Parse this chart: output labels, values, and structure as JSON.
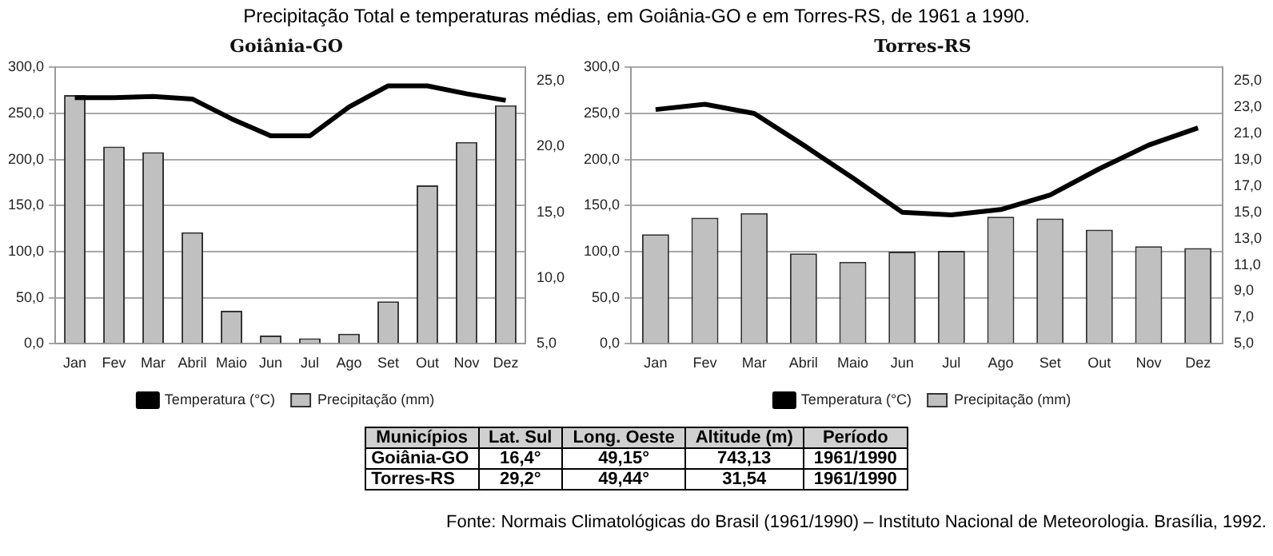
{
  "chart_data": [
    {
      "type": "bar",
      "title": "Goiânia-GO",
      "categories": [
        "Jan",
        "Fev",
        "Mar",
        "Abril",
        "Maio",
        "Jun",
        "Jul",
        "Ago",
        "Set",
        "Out",
        "Nov",
        "Dez"
      ],
      "series": [
        {
          "name": "Precipitação (mm)",
          "type": "bar",
          "color": "#c0c0c0",
          "values": [
            270,
            214,
            208,
            121,
            36,
            9,
            6,
            11,
            46,
            172,
            219,
            259
          ]
        },
        {
          "name": "Temperatura (°C)",
          "type": "line",
          "axis": "y2",
          "color": "#000000",
          "values": [
            23.7,
            23.7,
            23.8,
            23.6,
            22.1,
            20.8,
            20.8,
            23.0,
            24.6,
            24.6,
            24.0,
            23.5
          ]
        }
      ],
      "ylim": [
        0,
        300
      ],
      "yticks": [
        {
          "value": 0,
          "label": "0,0"
        },
        {
          "value": 50,
          "label": "50,0"
        },
        {
          "value": 100,
          "label": "100,0"
        },
        {
          "value": 150,
          "label": "150,0"
        },
        {
          "value": 200,
          "label": "200,0"
        },
        {
          "value": 250,
          "label": "250,0"
        },
        {
          "value": 300,
          "label": "300,0"
        }
      ],
      "y2lim": [
        5,
        26
      ],
      "y2ticks": [
        {
          "value": 5,
          "label": "5,0"
        },
        {
          "value": 10,
          "label": "10,0"
        },
        {
          "value": 15,
          "label": "15,0"
        },
        {
          "value": 20,
          "label": "20,0"
        },
        {
          "value": 25,
          "label": "25,0"
        }
      ],
      "grid": "y",
      "legend": "bottom",
      "marker": "none",
      "line_style": "solid"
    },
    {
      "type": "bar",
      "title": "Torres-RS",
      "categories": [
        "Jan",
        "Fev",
        "Mar",
        "Abril",
        "Maio",
        "Jun",
        "Jul",
        "Ago",
        "Set",
        "Out",
        "Nov",
        "Dez"
      ],
      "series": [
        {
          "name": "Precipitação (mm)",
          "type": "bar",
          "color": "#c0c0c0",
          "values": [
            119,
            137,
            142,
            98,
            89,
            100,
            101,
            138,
            136,
            124,
            106,
            104
          ]
        },
        {
          "name": "Temperatura (°C)",
          "type": "line",
          "axis": "y2",
          "color": "#000000",
          "values": [
            22.8,
            23.2,
            22.5,
            20.1,
            17.6,
            15.0,
            14.8,
            15.2,
            16.3,
            18.3,
            20.1,
            21.4
          ]
        }
      ],
      "ylim": [
        0,
        300
      ],
      "yticks": [
        {
          "value": 0,
          "label": "0,0"
        },
        {
          "value": 50,
          "label": "50,0"
        },
        {
          "value": 100,
          "label": "100,0"
        },
        {
          "value": 150,
          "label": "150,0"
        },
        {
          "value": 200,
          "label": "200,0"
        },
        {
          "value": 250,
          "label": "250,0"
        },
        {
          "value": 300,
          "label": "300,0"
        }
      ],
      "y2lim": [
        5,
        26
      ],
      "y2ticks": [
        {
          "value": 5,
          "label": "5,0"
        },
        {
          "value": 7,
          "label": "7,0"
        },
        {
          "value": 9,
          "label": "9,0"
        },
        {
          "value": 11,
          "label": "11,0"
        },
        {
          "value": 13,
          "label": "13,0"
        },
        {
          "value": 15,
          "label": "15,0"
        },
        {
          "value": 17,
          "label": "17,0"
        },
        {
          "value": 19,
          "label": "19,0"
        },
        {
          "value": 21,
          "label": "21,0"
        },
        {
          "value": 23,
          "label": "23,0"
        },
        {
          "value": 25,
          "label": "25,0"
        }
      ],
      "grid": "y",
      "legend": "bottom",
      "marker": "none",
      "line_style": "solid"
    },
    {
      "type": "other",
      "title": "Precipitação Total e temperaturas médias, em Goiânia-GO e em Torres-RS, de 1961 a 1990.",
      "categories": [
        "Municípios",
        "Lat. Sul",
        "Long. Oeste",
        "Altitude (m)",
        "Período"
      ],
      "y_categories": [
        "Goiânia-GO",
        "Torres-RS"
      ],
      "cell_labels": [
        [
          "16,4°",
          "49,15°",
          "743,13",
          "1961/1990"
        ],
        [
          "29,2°",
          "49,44°",
          "31,54",
          "1961/1990"
        ]
      ],
      "annotations": [
        "Fonte: Normais Climatológicas do Brasil (1961/1990) – Instituto Nacional de Meteorologia. Brasília, 1992."
      ]
    }
  ]
}
